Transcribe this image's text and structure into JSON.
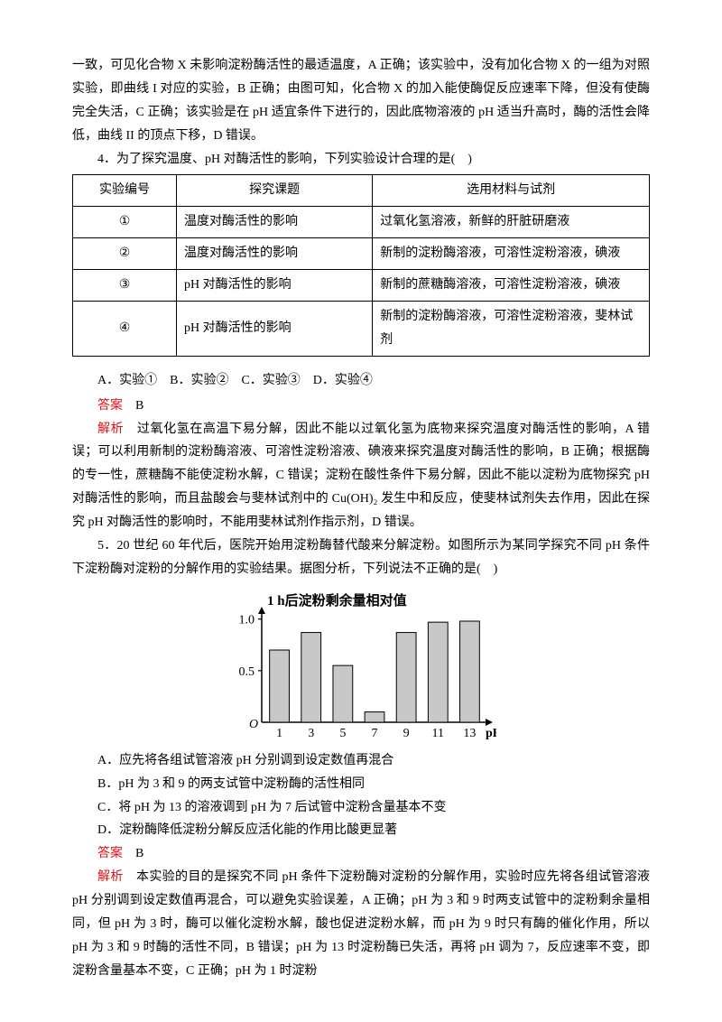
{
  "intro_para": "一致，可见化合物 X 未影响淀粉酶活性的最适温度，A 正确；该实验中，没有加化合物 X 的一组为对照实验，即曲线 I 对应的实验，B 正确；由图可知，化合物 X 的加入能使酶促反应速率下降，但没有使酶完全失活，C 正确；该实验是在 pH 适宜条件下进行的，因此底物溶液的 pH 适当升高时，酶的活性会降低，曲线 II 的顶点下移，D 错误。",
  "q4": {
    "stem": "4．为了探究温度、pH 对酶活性的影响，下列实验设计合理的是(　)",
    "table": {
      "headers": [
        "实验编号",
        "探究课题",
        "选用材料与试剂"
      ],
      "rows": [
        [
          "①",
          "温度对酶活性的影响",
          "过氧化氢溶液，新鲜的肝脏研磨液"
        ],
        [
          "②",
          "温度对酶活性的影响",
          "新制的淀粉酶溶液，可溶性淀粉溶液，碘液"
        ],
        [
          "③",
          "pH 对酶活性的影响",
          "新制的蔗糖酶溶液，可溶性淀粉溶液，碘液"
        ],
        [
          "④",
          "pH 对酶活性的影响",
          "新制的淀粉酶溶液，可溶性淀粉溶液，斐林试剂"
        ]
      ],
      "col_widths": [
        "18%",
        "34%",
        "48%"
      ]
    },
    "options_line": "A．实验①　B．实验②　C．实验③　D．实验④",
    "answer_label": "答案",
    "answer_value": "B",
    "explain_label": "解析",
    "explain_text": "过氧化氢在高温下易分解，因此不能以过氧化氢为底物来探究温度对酶活性的影响，A 错误；可以利用新制的淀粉酶溶液、可溶性淀粉溶液、碘液来探究温度对酶活性的影响，B 正确；根据酶的专一性，蔗糖酶不能使淀粉水解，C 错误；淀粉在酸性条件下易分解，因此不能以淀粉为底物探究 pH 对酶活性的影响，而且盐酸会与斐林试剂中的 Cu(OH)₂ 发生中和反应，使斐林试剂失去作用，因此在探究 pH 对酶活性的影响时，不能用斐林试剂作指示剂，D 错误。"
  },
  "q5": {
    "stem": "5．20 世纪 60 年代后，医院开始用淀粉酶替代酸来分解淀粉。如图所示为某同学探究不同 pH 条件下淀粉酶对淀粉的分解作用的实验结果。据图分析，下列说法不正确的是(　)",
    "chart": {
      "type": "bar",
      "title": "1 h后淀粉剩余量相对值",
      "title_fontsize": 15,
      "xlabel": "pH",
      "categories": [
        "1",
        "3",
        "5",
        "7",
        "9",
        "11",
        "13"
      ],
      "values": [
        0.7,
        0.87,
        0.55,
        0.1,
        0.87,
        0.97,
        0.98
      ],
      "bar_color": "#c8c8c8",
      "bar_stroke": "#000000",
      "background_color": "#ffffff",
      "axis_color": "#000000",
      "ytick_values": [
        0.5,
        1.0
      ],
      "ylim": [
        0,
        1.05
      ],
      "bar_width": 0.62,
      "label_fontsize": 14,
      "tick_fontsize": 14
    },
    "options": [
      "A．应先将各组试管溶液 pH 分别调到设定数值再混合",
      "B．pH 为 3 和 9 的两支试管中淀粉酶的活性相同",
      "C．将 pH 为 13 的溶液调到 pH 为 7 后试管中淀粉含量基本不变",
      "D．淀粉酶降低淀粉分解反应活化能的作用比酸更显著"
    ],
    "answer_label": "答案",
    "answer_value": "B",
    "explain_label": "解析",
    "explain_text": "本实验的目的是探究不同 pH 条件下淀粉酶对淀粉的分解作用，实验时应先将各组试管溶液 pH 分别调到设定数值再混合，可以避免实验误差，A 正确；pH 为 3 和 9 时两支试管中的淀粉剩余量相同，但 pH 为 3 时，酶可以催化淀粉水解，酸也促进淀粉水解，而 pH 为 9 时只有酶的催化作用，所以 pH 为 3 和 9 时酶的活性不同，B 错误；pH 为 13 时淀粉酶已失活，再将 pH 调为 7，反应速率不变，即淀粉含量基本不变，C 正确；pH 为 1 时淀粉"
  }
}
